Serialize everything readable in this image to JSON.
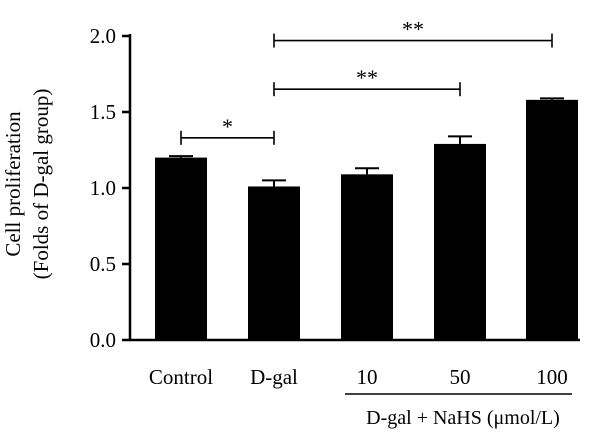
{
  "chart_data": {
    "type": "bar",
    "categories": [
      "Control",
      "D-gal",
      "10",
      "50",
      "100"
    ],
    "values": [
      1.2,
      1.01,
      1.09,
      1.29,
      1.58
    ],
    "errors": [
      0.01,
      0.04,
      0.04,
      0.05,
      0.01
    ],
    "ylabel_line1": "Cell proliferation",
    "ylabel_line2": "(Folds of D-gal group)",
    "ylim": [
      0,
      2.0
    ],
    "yticks": [
      "0.0",
      "0.5",
      "1.0",
      "1.5",
      "2.0"
    ],
    "ytick_values": [
      0,
      0.5,
      1.0,
      1.5,
      2.0
    ],
    "group_label": "D-gal + NaHS (μmol/L)",
    "group_categories": [
      2,
      3,
      4
    ],
    "bar_color": "#000000",
    "grid": false,
    "significance": [
      {
        "from": 0,
        "to": 1,
        "label": "*",
        "y": 1.33
      },
      {
        "from": 1,
        "to": 3,
        "label": "**",
        "y": 1.65
      },
      {
        "from": 1,
        "to": 4,
        "label": "**",
        "y": 1.97
      }
    ]
  }
}
